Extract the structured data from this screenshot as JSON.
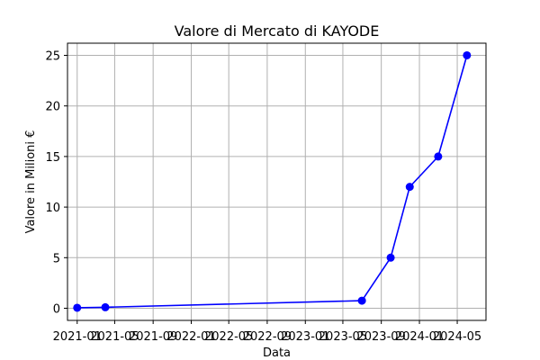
{
  "chart_data": {
    "type": "line",
    "title": "Valore di Mercato di KAYODE",
    "xlabel": "Data",
    "ylabel": "Valore in Milioni €",
    "grid": true,
    "line_color": "#0000ff",
    "x_ticks": [
      "2021-01",
      "2021-05",
      "2021-09",
      "2022-01",
      "2022-05",
      "2022-09",
      "2023-01",
      "2023-05",
      "2023-09",
      "2024-01",
      "2024-05"
    ],
    "y_ticks": [
      0,
      5,
      10,
      15,
      20,
      25
    ],
    "xlim": [
      "2020-12-01",
      "2024-08-01"
    ],
    "ylim": [
      -1.2,
      26.2
    ],
    "x": [
      "2021-01-01",
      "2021-04-01",
      "2023-07-01",
      "2023-10-01",
      "2023-12-01",
      "2024-03-01",
      "2024-06-01"
    ],
    "series": [
      {
        "values": [
          0.05,
          0.1,
          0.75,
          5,
          12,
          15,
          25
        ]
      }
    ]
  }
}
